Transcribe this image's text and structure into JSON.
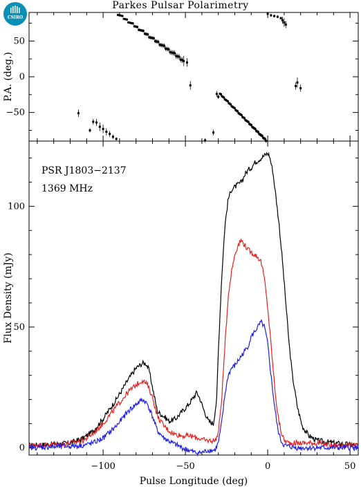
{
  "page": {
    "title": "Parkes Pulsar Polarimetry",
    "logo_text": "CSIRO"
  },
  "chart_data": [
    {
      "type": "scatter",
      "panel": "position-angle",
      "ylabel": "P.A. (deg.)",
      "xlim": [
        -145,
        55
      ],
      "ylim": [
        -90,
        90
      ],
      "yticks": [
        -50,
        0,
        50
      ],
      "xticks": [
        -100,
        -50,
        0,
        50
      ],
      "points": [
        [
          -115,
          -51,
          5
        ],
        [
          -108,
          -75,
          3
        ],
        [
          -106,
          -63,
          4
        ],
        [
          -104,
          -64,
          5
        ],
        [
          -102,
          -70,
          6
        ],
        [
          -100,
          -73,
          6
        ],
        [
          -98,
          -77,
          5
        ],
        [
          -96,
          -80,
          4
        ],
        [
          -94,
          -84,
          3
        ],
        [
          -92,
          -87,
          2
        ],
        [
          -51,
          22,
          7
        ],
        [
          -49,
          20,
          6
        ],
        [
          -47,
          -12,
          6
        ],
        [
          -38,
          -89,
          3
        ],
        [
          -33,
          -78,
          4
        ],
        [
          -31,
          -24,
          4
        ],
        [
          -30,
          -28,
          3
        ],
        [
          0,
          88,
          2
        ],
        [
          2,
          86,
          2
        ],
        [
          4,
          85,
          2
        ],
        [
          6,
          84,
          2
        ],
        [
          8,
          82,
          2
        ],
        [
          9,
          79,
          5
        ],
        [
          10,
          76,
          6
        ],
        [
          11,
          73,
          5
        ],
        [
          17,
          -13,
          5
        ],
        [
          18,
          -8,
          7
        ],
        [
          20,
          -16,
          5
        ]
      ],
      "trends": [
        {
          "x_start": -91,
          "y_start": 88,
          "x_end": -52,
          "y_end": 24,
          "step": 0.9,
          "jitter": 3
        },
        {
          "x_start": -29,
          "y_start": -24,
          "x_end": -1,
          "y_end": -89,
          "step": 0.6,
          "jitter": 1.5
        }
      ]
    },
    {
      "type": "line",
      "panel": "flux-profile",
      "xlabel": "Pulse Longitude (deg)",
      "ylabel": "Flux Density (mJy)",
      "xlim": [
        -145,
        55
      ],
      "ylim": [
        -3,
        127
      ],
      "xticks": [
        -100,
        -50,
        0,
        50
      ],
      "yticks": [
        0,
        50,
        100
      ],
      "annotations": [
        "PSR J1803−2137",
        "1369 MHz"
      ],
      "series": [
        {
          "color": "#000000",
          "x": [
            -145,
            -130,
            -120,
            -112,
            -106,
            -100,
            -92,
            -85,
            -80,
            -76,
            -74,
            -72,
            -70,
            -67,
            -63,
            -60,
            -56,
            -52,
            -48,
            -45,
            -43,
            -41,
            -39,
            -36,
            -33,
            -31,
            -30,
            -28,
            -26,
            -24,
            -22,
            -20,
            -18,
            -16,
            -14,
            -12,
            -10,
            -8,
            -6,
            -4,
            -2,
            0,
            1,
            3,
            5,
            7,
            9,
            11,
            13,
            15,
            18,
            21,
            25,
            30,
            40,
            55
          ],
          "y": [
            1,
            1.5,
            2,
            4,
            7,
            12,
            20,
            28,
            33,
            35,
            35,
            32,
            25,
            15,
            13,
            11,
            12,
            15,
            18,
            21,
            23,
            20,
            16,
            11,
            10,
            20,
            40,
            70,
            92,
            103,
            107,
            108,
            109,
            110,
            113,
            115,
            116,
            118,
            119,
            120,
            121,
            122,
            121,
            115,
            104,
            92,
            77,
            60,
            43,
            30,
            17,
            9,
            5,
            3,
            2,
            1
          ]
        },
        {
          "color": "#e8201f",
          "x": [
            -145,
            -125,
            -112,
            -106,
            -100,
            -92,
            -85,
            -80,
            -76,
            -73,
            -70,
            -67,
            -63,
            -58,
            -52,
            -48,
            -42,
            -38,
            -35,
            -32,
            -30,
            -28,
            -26,
            -24,
            -22,
            -20,
            -18,
            -16,
            -14,
            -12,
            -10,
            -8,
            -6,
            -4,
            -2,
            0,
            2,
            4,
            6,
            8,
            10,
            13,
            16,
            20,
            30,
            40,
            55
          ],
          "y": [
            1,
            1.5,
            3,
            6,
            10,
            17,
            23,
            26,
            28,
            26,
            21,
            13,
            9,
            6,
            5,
            5,
            4,
            3,
            3,
            3,
            6,
            20,
            42,
            63,
            73,
            80,
            84,
            86,
            84,
            82,
            81,
            80,
            79,
            77,
            70,
            58,
            43,
            27,
            14,
            7,
            3,
            2,
            2,
            2,
            2,
            1,
            1
          ]
        },
        {
          "color": "#1d1ded",
          "x": [
            -145,
            -125,
            -112,
            -106,
            -100,
            -92,
            -85,
            -80,
            -76,
            -73,
            -70,
            -67,
            -63,
            -58,
            -52,
            -48,
            -44,
            -40,
            -36,
            -32,
            -30,
            -28,
            -26,
            -24,
            -22,
            -20,
            -18,
            -16,
            -14,
            -12,
            -10,
            -8,
            -6,
            -4,
            -2,
            0,
            2,
            4,
            6,
            8,
            10,
            13,
            18,
            25,
            40,
            55
          ],
          "y": [
            0,
            0.5,
            1,
            2,
            4,
            9,
            15,
            18,
            20,
            18,
            13,
            7,
            4,
            2,
            0,
            -1,
            -2,
            -2,
            -1,
            -1,
            2,
            10,
            22,
            30,
            33,
            34,
            36,
            38,
            40,
            42,
            46,
            48,
            50,
            52,
            50,
            43,
            30,
            18,
            8,
            3,
            1,
            0.5,
            0,
            0,
            0,
            0
          ]
        }
      ]
    }
  ]
}
